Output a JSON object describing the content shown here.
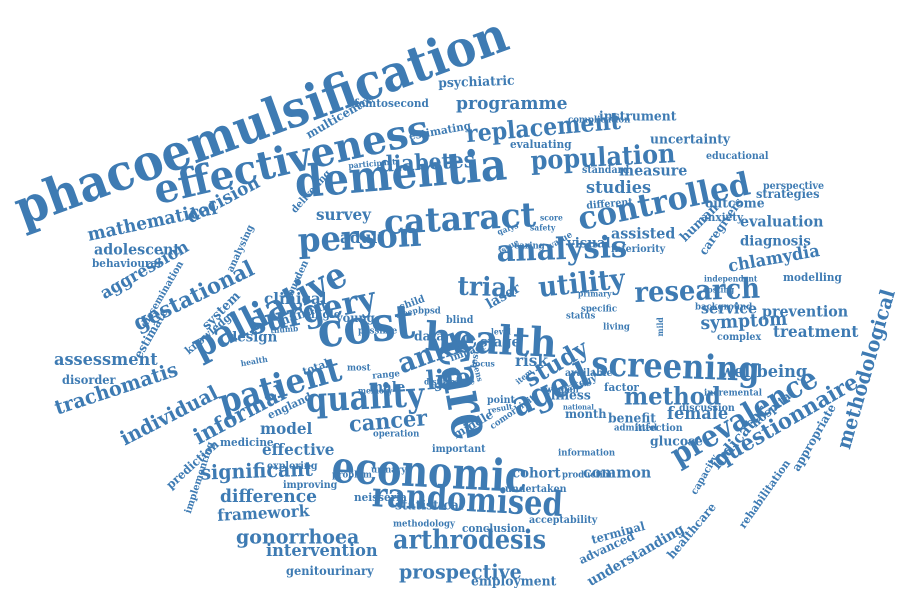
{
  "color": "#3e7bb3",
  "words": [
    "phacoemulsification",
    "effectiveness",
    "dementia",
    "cataract",
    "controlled",
    "person",
    "analysis",
    "surgery",
    "palliative",
    "gestational",
    "cost",
    "health",
    "care",
    "economic",
    "randomised",
    "screening",
    "quality",
    "aged",
    "prevalence",
    "questionnaire",
    "methodological",
    "arthrodesis",
    "patient",
    "ankle",
    "life",
    "research",
    "utility",
    "trial",
    "population",
    "replacement",
    "diabetes",
    "programme",
    "psychiatric",
    "multicentre",
    "femtosecond",
    "instrument",
    "uncertainty",
    "educational",
    "mathematical",
    "decision",
    "adolescent",
    "behavioural",
    "aggression",
    "assessment",
    "trachomatis",
    "individual",
    "informal",
    "disorder",
    "estimate",
    "prediction",
    "implementing",
    "significant",
    "difference",
    "framework",
    "gonorrhoea",
    "intervention",
    "genitourinary",
    "prospective",
    "employment",
    "cancer",
    "model",
    "female",
    "indicator",
    "glucose",
    "cohort",
    "common",
    "terminal",
    "advanced",
    "understanding",
    "healthcare",
    "capacity",
    "rehabilitation",
    "appropriate",
    "hospital",
    "wellbeing",
    "treatment",
    "symptom",
    "prevention",
    "modelling",
    "chlamydia",
    "diagnosis",
    "evaluation",
    "strategies",
    "perspective",
    "outcome",
    "human",
    "caregivers",
    "anxiety",
    "inferiority",
    "assisted",
    "visual",
    "illness",
    "method",
    "service",
    "benefit",
    "month",
    "factor",
    "infection",
    "stage",
    "laser",
    "data",
    "study",
    "risk",
    "male",
    "scale",
    "middle",
    "statistical",
    "conclusion",
    "acceptability",
    "methodology",
    "neisseria",
    "improving",
    "exploring",
    "effective",
    "medicine",
    "england",
    "clinical",
    "design",
    "manual",
    "young",
    "adult",
    "survey",
    "studies",
    "measure",
    "standard",
    "different",
    "evaluating",
    "estimating",
    "knowledge",
    "system",
    "dissemination",
    "burden",
    "analysing",
    "delivering",
    "complex",
    "focus",
    "lens",
    "item",
    "test",
    "level",
    "status",
    "specific",
    "living",
    "primary",
    "issue",
    "caring",
    "child",
    "sleep",
    "single",
    "possible",
    "total",
    "most",
    "impact",
    "point",
    "result",
    "woman",
    "strategy",
    "available",
    "admitted",
    "discussion",
    "incremental",
    "background",
    "independent",
    "costing",
    "mild",
    "score",
    "qalys",
    "bpsd",
    "blind",
    "safety",
    "range",
    "value",
    "memory",
    "disturbance",
    "operation",
    "problem",
    "urinary",
    "important",
    "comorbidity",
    "undertaken",
    "production",
    "information",
    "national",
    "complication",
    "participant",
    "thumb",
    "health"
  ]
}
